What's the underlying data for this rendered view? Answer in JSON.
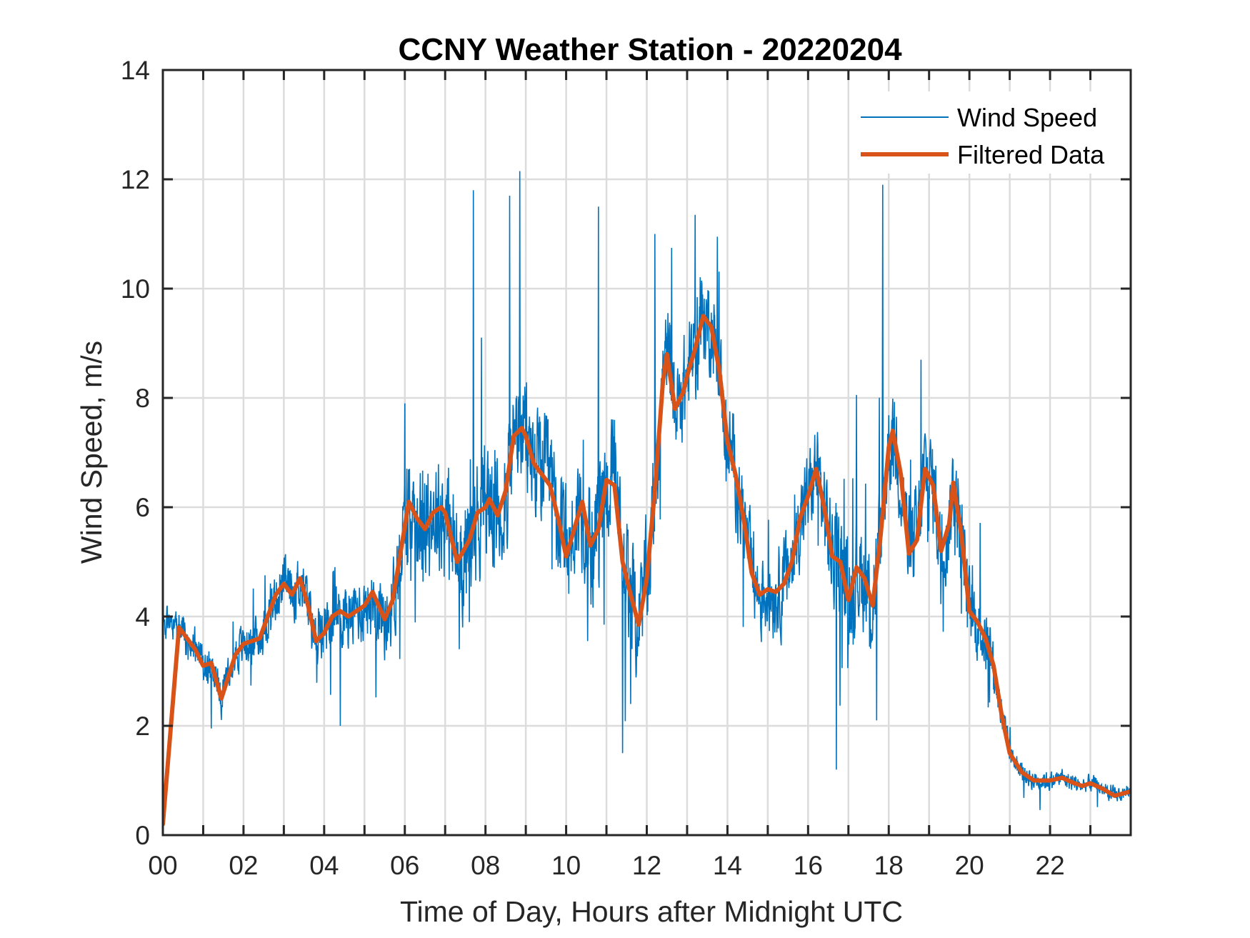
{
  "chart_data": {
    "type": "line",
    "title": "CCNY Weather Station - 20220204",
    "xlabel": "Time of Day, Hours after Midnight UTC",
    "ylabel": "Wind Speed, m/s",
    "xlim": [
      0,
      24
    ],
    "ylim": [
      0,
      14
    ],
    "x_ticks": [
      0,
      2,
      4,
      6,
      8,
      10,
      12,
      14,
      16,
      18,
      20,
      22
    ],
    "x_tick_labels": [
      "00",
      "02",
      "04",
      "06",
      "08",
      "10",
      "12",
      "14",
      "16",
      "18",
      "20",
      "22"
    ],
    "x_grid_step_hours": 1,
    "y_ticks": [
      0,
      2,
      4,
      6,
      8,
      10,
      12,
      14
    ],
    "y_tick_labels": [
      "0",
      "2",
      "4",
      "6",
      "8",
      "10",
      "12",
      "14"
    ],
    "grid": true,
    "legend_position": "top-right",
    "series": [
      {
        "name": "Wind Speed",
        "color": "#0072BD",
        "kind": "raw-noisy",
        "note": "High-frequency raw samples; trend follows Filtered Data with local noise amplitude and spikes below",
        "noise_amplitude": [
          [
            0,
            0.5
          ],
          [
            2,
            0.6
          ],
          [
            5.5,
            1.0
          ],
          [
            6,
            1.4
          ],
          [
            8,
            1.8
          ],
          [
            9,
            1.6
          ],
          [
            11,
            1.7
          ],
          [
            12.5,
            1.4
          ],
          [
            14,
            1.2
          ],
          [
            16,
            1.2
          ],
          [
            17,
            1.5
          ],
          [
            19,
            1.4
          ],
          [
            20.5,
            0.9
          ],
          [
            21,
            0.3
          ],
          [
            24,
            0.2
          ]
        ],
        "spikes": [
          {
            "x": 7.7,
            "y": 11.8
          },
          {
            "x": 8.6,
            "y": 11.7
          },
          {
            "x": 8.85,
            "y": 12.15
          },
          {
            "x": 10.8,
            "y": 11.5
          },
          {
            "x": 12.2,
            "y": 11.0
          },
          {
            "x": 13.2,
            "y": 11.35
          },
          {
            "x": 17.85,
            "y": 11.9
          },
          {
            "x": 6.0,
            "y": 7.9
          },
          {
            "x": 18.8,
            "y": 8.7
          },
          {
            "x": 11.4,
            "y": 1.5
          },
          {
            "x": 16.7,
            "y": 1.2
          },
          {
            "x": 4.4,
            "y": 2.0
          },
          {
            "x": 1.2,
            "y": 1.95
          },
          {
            "x": 17.7,
            "y": 2.1
          },
          {
            "x": 11.6,
            "y": 2.4
          }
        ]
      },
      {
        "name": "Filtered Data",
        "color": "#D95319",
        "kind": "smooth",
        "points": [
          [
            0.0,
            0.2
          ],
          [
            0.4,
            3.8
          ],
          [
            0.8,
            3.4
          ],
          [
            1.0,
            3.1
          ],
          [
            1.2,
            3.15
          ],
          [
            1.45,
            2.5
          ],
          [
            1.8,
            3.3
          ],
          [
            2.0,
            3.5
          ],
          [
            2.4,
            3.6
          ],
          [
            2.8,
            4.4
          ],
          [
            3.0,
            4.6
          ],
          [
            3.2,
            4.4
          ],
          [
            3.4,
            4.7
          ],
          [
            3.6,
            4.2
          ],
          [
            3.8,
            3.55
          ],
          [
            4.0,
            3.7
          ],
          [
            4.2,
            4.0
          ],
          [
            4.4,
            4.1
          ],
          [
            4.6,
            4.0
          ],
          [
            5.0,
            4.2
          ],
          [
            5.2,
            4.45
          ],
          [
            5.5,
            3.95
          ],
          [
            5.7,
            4.3
          ],
          [
            5.9,
            5.2
          ],
          [
            6.1,
            6.1
          ],
          [
            6.3,
            5.8
          ],
          [
            6.5,
            5.6
          ],
          [
            6.7,
            5.9
          ],
          [
            6.9,
            6.0
          ],
          [
            7.0,
            5.9
          ],
          [
            7.3,
            5.0
          ],
          [
            7.6,
            5.4
          ],
          [
            7.8,
            5.9
          ],
          [
            8.0,
            6.0
          ],
          [
            8.1,
            6.15
          ],
          [
            8.3,
            5.85
          ],
          [
            8.5,
            6.3
          ],
          [
            8.7,
            7.3
          ],
          [
            8.9,
            7.45
          ],
          [
            9.0,
            7.3
          ],
          [
            9.2,
            6.8
          ],
          [
            9.4,
            6.6
          ],
          [
            9.6,
            6.4
          ],
          [
            9.8,
            5.8
          ],
          [
            10.0,
            5.1
          ],
          [
            10.2,
            5.6
          ],
          [
            10.4,
            6.1
          ],
          [
            10.6,
            5.3
          ],
          [
            10.8,
            5.6
          ],
          [
            11.0,
            6.5
          ],
          [
            11.2,
            6.4
          ],
          [
            11.4,
            5.0
          ],
          [
            11.6,
            4.4
          ],
          [
            11.8,
            3.85
          ],
          [
            12.0,
            4.7
          ],
          [
            12.2,
            6.3
          ],
          [
            12.4,
            8.3
          ],
          [
            12.5,
            8.8
          ],
          [
            12.7,
            7.8
          ],
          [
            12.9,
            8.1
          ],
          [
            13.0,
            8.4
          ],
          [
            13.2,
            8.9
          ],
          [
            13.4,
            9.5
          ],
          [
            13.6,
            9.3
          ],
          [
            13.8,
            8.5
          ],
          [
            14.0,
            7.2
          ],
          [
            14.2,
            6.6
          ],
          [
            14.4,
            5.8
          ],
          [
            14.6,
            4.8
          ],
          [
            14.8,
            4.4
          ],
          [
            15.0,
            4.5
          ],
          [
            15.2,
            4.45
          ],
          [
            15.4,
            4.6
          ],
          [
            15.6,
            5.0
          ],
          [
            15.8,
            5.8
          ],
          [
            16.0,
            6.2
          ],
          [
            16.2,
            6.7
          ],
          [
            16.4,
            6.0
          ],
          [
            16.6,
            5.1
          ],
          [
            16.8,
            5.0
          ],
          [
            17.0,
            4.3
          ],
          [
            17.2,
            4.9
          ],
          [
            17.4,
            4.7
          ],
          [
            17.6,
            4.2
          ],
          [
            17.8,
            5.5
          ],
          [
            18.0,
            7.1
          ],
          [
            18.1,
            7.4
          ],
          [
            18.3,
            6.6
          ],
          [
            18.5,
            5.15
          ],
          [
            18.7,
            5.4
          ],
          [
            18.9,
            6.7
          ],
          [
            19.1,
            6.4
          ],
          [
            19.3,
            5.2
          ],
          [
            19.5,
            5.7
          ],
          [
            19.6,
            6.45
          ],
          [
            19.8,
            5.5
          ],
          [
            20.0,
            4.1
          ],
          [
            20.2,
            3.9
          ],
          [
            20.4,
            3.6
          ],
          [
            20.6,
            3.1
          ],
          [
            20.8,
            2.2
          ],
          [
            21.0,
            1.5
          ],
          [
            21.3,
            1.15
          ],
          [
            21.6,
            1.0
          ],
          [
            22.0,
            1.0
          ],
          [
            22.3,
            1.05
          ],
          [
            22.6,
            0.95
          ],
          [
            22.8,
            0.9
          ],
          [
            23.0,
            0.95
          ],
          [
            23.3,
            0.85
          ],
          [
            23.6,
            0.72
          ],
          [
            24.0,
            0.8
          ]
        ]
      }
    ]
  }
}
